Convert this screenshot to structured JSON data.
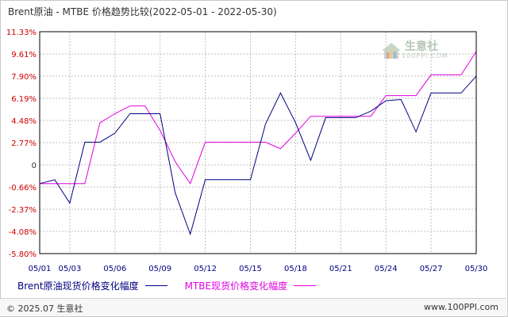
{
  "title": "Brent原油 - MTBE 价格趋势比较(2022-05-01 - 2022-05-30)",
  "footer": {
    "copyright": "© 2025.07 生意社",
    "site": "www.100PPI.com"
  },
  "watermark": {
    "brand": "生意社",
    "domain": "100PPI.COM"
  },
  "colors": {
    "brent": "#000080",
    "mtbe": "#e000e0",
    "grid": "#bfbfbf",
    "axis_label": "#cc0000"
  },
  "chart_data": {
    "type": "line",
    "title": "Brent原油 - MTBE 价格趋势比较(2022-05-01 - 2022-05-30)",
    "xlabel": "",
    "ylabel": "",
    "x_ticks": [
      "05/01",
      "05/03",
      "05/06",
      "05/09",
      "05/12",
      "05/15",
      "05/18",
      "05/21",
      "05/24",
      "05/27",
      "05/30"
    ],
    "y_ticks": [
      "11.33%",
      "9.61%",
      "7.90%",
      "6.19%",
      "4.48%",
      "2.77%",
      "0",
      "-0.66%",
      "-2.37%",
      "-4.08%",
      "-5.80%"
    ],
    "ylim": [
      -5.8,
      11.33
    ],
    "grid": true,
    "legend_position": "bottom",
    "series": [
      {
        "name": "Brent原油现货价格变化幅度",
        "x": [
          "05/01",
          "05/02",
          "05/03",
          "05/04",
          "05/05",
          "05/06",
          "05/07",
          "05/08",
          "05/09",
          "05/10",
          "05/11",
          "05/12",
          "05/13",
          "05/14",
          "05/15",
          "05/16",
          "05/17",
          "05/18",
          "05/19",
          "05/20",
          "05/21",
          "05/22",
          "05/23",
          "05/24",
          "05/25",
          "05/26",
          "05/27",
          "05/28",
          "05/29",
          "05/30"
        ],
        "values": [
          -0.4,
          -0.1,
          -1.9,
          2.8,
          2.8,
          3.5,
          5.0,
          5.0,
          5.0,
          -1.1,
          -4.3,
          -0.1,
          -0.1,
          -0.1,
          -0.1,
          4.2,
          6.6,
          4.3,
          1.4,
          4.7,
          4.7,
          4.7,
          5.2,
          6.0,
          6.1,
          3.6,
          6.6,
          6.6,
          6.6,
          7.9
        ]
      },
      {
        "name": "MTBE现货价格变化幅度",
        "x": [
          "05/01",
          "05/02",
          "05/03",
          "05/04",
          "05/05",
          "05/06",
          "05/07",
          "05/08",
          "05/09",
          "05/10",
          "05/11",
          "05/12",
          "05/13",
          "05/14",
          "05/15",
          "05/16",
          "05/17",
          "05/18",
          "05/19",
          "05/20",
          "05/21",
          "05/22",
          "05/23",
          "05/24",
          "05/25",
          "05/26",
          "05/27",
          "05/28",
          "05/29",
          "05/30"
        ],
        "values": [
          -0.4,
          -0.4,
          -0.4,
          -0.4,
          4.3,
          5.0,
          5.6,
          5.6,
          3.7,
          1.3,
          -0.4,
          2.8,
          2.8,
          2.8,
          2.8,
          2.8,
          2.3,
          3.5,
          4.8,
          4.8,
          4.8,
          4.8,
          4.8,
          6.4,
          6.4,
          6.4,
          8.0,
          8.0,
          8.0,
          9.8
        ]
      }
    ]
  }
}
